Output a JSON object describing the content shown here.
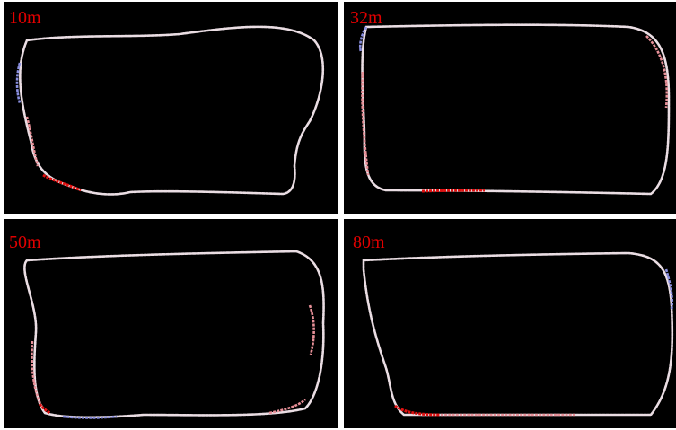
{
  "panels": [
    {
      "label": "10m"
    },
    {
      "label": "32m"
    },
    {
      "label": "50m"
    },
    {
      "label": "80m"
    }
  ]
}
